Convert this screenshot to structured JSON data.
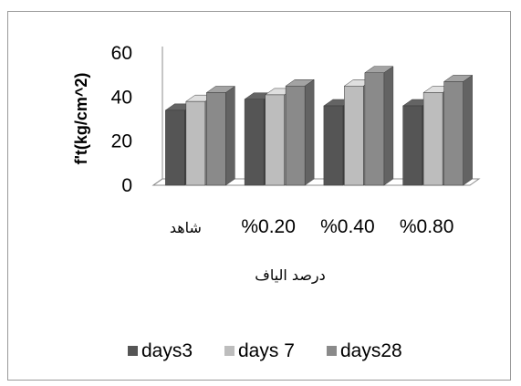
{
  "chart_data": {
    "type": "bar",
    "style": "3d-clustered-column",
    "categories": [
      "شاهد",
      "%0.20",
      "%0.40",
      "%0.80"
    ],
    "series": [
      {
        "name": "days3",
        "values": [
          34,
          39,
          36,
          36
        ],
        "color": "#555555"
      },
      {
        "name": "days 7",
        "values": [
          38,
          41,
          45,
          42
        ],
        "color": "#bdbdbd"
      },
      {
        "name": "days28",
        "values": [
          42,
          45,
          51,
          47
        ],
        "color": "#8a8a8a"
      }
    ],
    "ylabel": "f't(kg/cm^2)",
    "xlabel": "درصد الياف",
    "ylim": [
      0,
      60
    ],
    "yticks": [
      0,
      20,
      40,
      60
    ],
    "grid": false,
    "legend": "bottom"
  }
}
